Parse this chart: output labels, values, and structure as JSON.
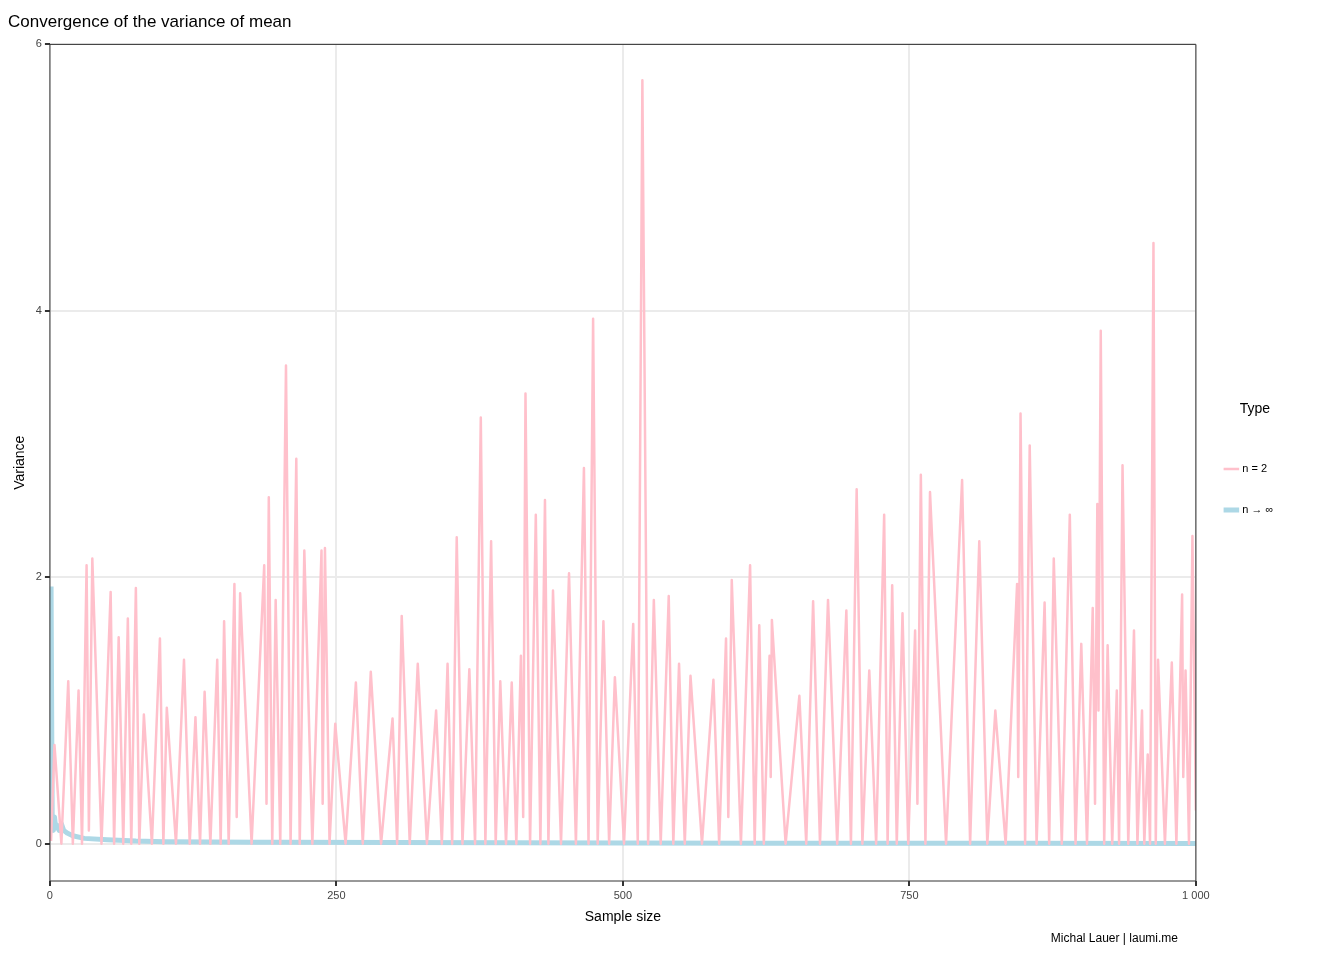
{
  "chart_data": {
    "type": "line",
    "title": "Convergence of the variance of mean",
    "xlabel": "Sample size",
    "ylabel": "Variance",
    "legend_title": "Type",
    "annotations": [
      "Michal Lauer | laumi.me"
    ],
    "xlim": [
      0,
      1000
    ],
    "xticks": [
      0,
      250,
      500,
      750,
      {
        "value": 1000,
        "label": "1 000"
      }
    ],
    "ylim": [
      -0.28,
      6
    ],
    "yticks": [
      0,
      2,
      4,
      6
    ],
    "grid": true,
    "legend": "right",
    "marker": "none",
    "line_style": "solid",
    "series": [
      {
        "name": "n = 2",
        "color": "#ffc0cb",
        "x": [
          1,
          4,
          10,
          16,
          20,
          25,
          28,
          32,
          34,
          37,
          45,
          53,
          56,
          60,
          64,
          68,
          71,
          75,
          78,
          82,
          89,
          96,
          99,
          102,
          110,
          117,
          122,
          127,
          131,
          135,
          140,
          146,
          149,
          152,
          156,
          161,
          163,
          166,
          176,
          187,
          189,
          191,
          194,
          197,
          201,
          206,
          210,
          215,
          218,
          222,
          229,
          237,
          238,
          240,
          244,
          249,
          258,
          267,
          273,
          280,
          289,
          299,
          303,
          307,
          314,
          321,
          329,
          337,
          342,
          347,
          351,
          355,
          360,
          366,
          371,
          376,
          380,
          385,
          389,
          393,
          398,
          403,
          407,
          411,
          413,
          415,
          419,
          424,
          428,
          432,
          435,
          439,
          446,
          453,
          459,
          466,
          470,
          474,
          478,
          483,
          488,
          493,
          501,
          509,
          513,
          517,
          522,
          527,
          533,
          540,
          544,
          549,
          554,
          559,
          569,
          579,
          584,
          590,
          592,
          595,
          603,
          611,
          615,
          619,
          623,
          628,
          629,
          630,
          642,
          654,
          660,
          666,
          672,
          679,
          687,
          695,
          699,
          704,
          709,
          715,
          721,
          728,
          731,
          735,
          739,
          744,
          749,
          755,
          757,
          760,
          764,
          768,
          782,
          796,
          803,
          811,
          818,
          825,
          834,
          844,
          845,
          847,
          851,
          855,
          861,
          868,
          872,
          876,
          883,
          890,
          895,
          900,
          905,
          910,
          912,
          914,
          915,
          917,
          920,
          923,
          927,
          931,
          933,
          936,
          941,
          946,
          949,
          953,
          955,
          958,
          960,
          963,
          965,
          967,
          973,
          979,
          983,
          988,
          989,
          991,
          994,
          997,
          1000
        ],
        "values": [
          0.02,
          0.74,
          0,
          1.22,
          0,
          1.15,
          0,
          2.09,
          0.1,
          2.14,
          0,
          1.89,
          0,
          1.55,
          0,
          1.69,
          0,
          1.92,
          0,
          0.97,
          0,
          1.54,
          0,
          1.02,
          0,
          1.38,
          0,
          0.95,
          0,
          1.14,
          0,
          1.38,
          0,
          1.67,
          0,
          1.95,
          0.2,
          1.88,
          0,
          2.09,
          0.3,
          2.6,
          0,
          1.83,
          0,
          3.59,
          0,
          2.89,
          0,
          2.2,
          0,
          2.2,
          0.3,
          2.22,
          0,
          0.9,
          0,
          1.21,
          0,
          1.29,
          0,
          0.94,
          0,
          1.71,
          0,
          1.35,
          0,
          1.0,
          0,
          1.35,
          0,
          2.3,
          0,
          1.31,
          0,
          3.2,
          0,
          2.27,
          0,
          1.22,
          0,
          1.21,
          0,
          1.41,
          0.2,
          3.38,
          0,
          2.47,
          0,
          2.58,
          0,
          1.9,
          0,
          2.03,
          0,
          2.82,
          0,
          3.94,
          0,
          1.67,
          0,
          1.25,
          0,
          1.65,
          0,
          5.73,
          0,
          1.83,
          0,
          1.86,
          0,
          1.35,
          0,
          1.26,
          0,
          1.23,
          0,
          1.54,
          0.2,
          1.98,
          0,
          2.09,
          0,
          1.64,
          0,
          1.41,
          0.5,
          1.68,
          0,
          1.11,
          0,
          1.82,
          0,
          1.83,
          0,
          1.75,
          0,
          2.66,
          0,
          1.3,
          0,
          2.47,
          0,
          1.94,
          0,
          1.73,
          0,
          1.6,
          0.3,
          2.77,
          0,
          2.64,
          0,
          2.73,
          0,
          2.27,
          0,
          1.0,
          0,
          1.95,
          0.5,
          3.23,
          0,
          2.99,
          0,
          1.81,
          0,
          2.14,
          0,
          2.47,
          0,
          1.5,
          0,
          1.77,
          0.3,
          2.55,
          1.0,
          3.85,
          0,
          1.49,
          0,
          1.15,
          0,
          2.84,
          0,
          1.6,
          0,
          1.0,
          0,
          0.67,
          0,
          4.51,
          0,
          1.38,
          0,
          1.36,
          0,
          1.87,
          0.5,
          1.3,
          0,
          2.31,
          0.25
        ]
      },
      {
        "name": "n → ∞",
        "color": "#add8e6",
        "x": [
          1,
          2,
          3,
          4,
          5,
          6,
          8,
          10,
          12,
          15,
          20,
          30,
          50,
          75,
          100,
          200,
          500,
          1000
        ],
        "values": [
          1.93,
          0.15,
          0.1,
          0.2,
          0.12,
          0.14,
          0.1,
          0.15,
          0.1,
          0.08,
          0.06,
          0.04,
          0.03,
          0.02,
          0.015,
          0.01,
          0.005,
          0.002
        ]
      }
    ]
  }
}
